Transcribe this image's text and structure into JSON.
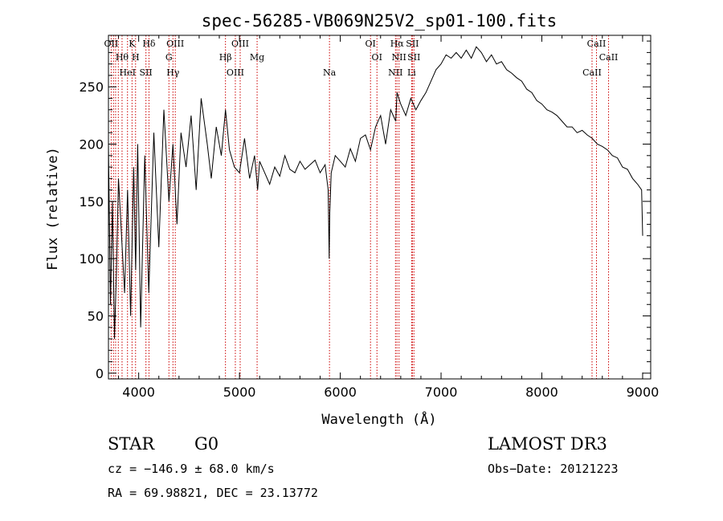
{
  "chart_data": {
    "type": "line",
    "title": "spec-56285-VB069N25V2_sp01-100.fits",
    "xlabel": "Wavelength (Å)",
    "ylabel": "Flux (relative)",
    "xlim": [
      3700,
      9080
    ],
    "ylim": [
      -5,
      295
    ],
    "xticks": [
      4000,
      5000,
      6000,
      7000,
      8000,
      9000
    ],
    "yticks": [
      0,
      50,
      100,
      150,
      200,
      250
    ],
    "grid": false,
    "series": [
      {
        "color": "#000000",
        "x": [
          3700,
          3720,
          3740,
          3760,
          3780,
          3800,
          3830,
          3860,
          3890,
          3920,
          3950,
          3970,
          3990,
          4020,
          4060,
          4100,
          4150,
          4200,
          4250,
          4300,
          4340,
          4380,
          4420,
          4470,
          4520,
          4570,
          4620,
          4680,
          4720,
          4770,
          4820,
          4861,
          4900,
          4950,
          5000,
          5050,
          5100,
          5150,
          5180,
          5200,
          5250,
          5300,
          5350,
          5400,
          5450,
          5500,
          5550,
          5600,
          5650,
          5700,
          5750,
          5800,
          5850,
          5880,
          5890,
          5896,
          5910,
          5950,
          6000,
          6050,
          6100,
          6150,
          6200,
          6250,
          6300,
          6350,
          6400,
          6450,
          6500,
          6550,
          6563,
          6600,
          6650,
          6700,
          6750,
          6800,
          6850,
          6900,
          6950,
          7000,
          7050,
          7100,
          7150,
          7200,
          7250,
          7300,
          7350,
          7400,
          7450,
          7500,
          7550,
          7600,
          7650,
          7700,
          7750,
          7800,
          7850,
          7900,
          7950,
          8000,
          8050,
          8100,
          8150,
          8200,
          8250,
          8300,
          8350,
          8400,
          8450,
          8500,
          8550,
          8600,
          8650,
          8700,
          8750,
          8800,
          8850,
          8900,
          8950,
          8990,
          9000
        ],
        "y": [
          200,
          60,
          150,
          30,
          90,
          170,
          120,
          70,
          160,
          50,
          180,
          90,
          200,
          40,
          190,
          70,
          210,
          110,
          230,
          150,
          200,
          130,
          210,
          180,
          225,
          160,
          240,
          200,
          170,
          215,
          190,
          230,
          195,
          180,
          175,
          205,
          170,
          190,
          160,
          185,
          175,
          165,
          180,
          172,
          190,
          178,
          175,
          185,
          178,
          182,
          186,
          175,
          182,
          160,
          100,
          140,
          175,
          190,
          185,
          180,
          196,
          185,
          205,
          208,
          195,
          215,
          225,
          200,
          230,
          220,
          245,
          235,
          225,
          240,
          230,
          238,
          245,
          255,
          265,
          270,
          278,
          275,
          280,
          275,
          282,
          275,
          285,
          280,
          272,
          278,
          270,
          272,
          265,
          262,
          258,
          255,
          248,
          245,
          238,
          235,
          230,
          228,
          225,
          220,
          215,
          215,
          210,
          212,
          208,
          205,
          200,
          198,
          195,
          190,
          188,
          180,
          178,
          170,
          165,
          160,
          120
        ]
      }
    ],
    "lines": [
      {
        "x": 3727,
        "top": "OII",
        "bottom": ""
      },
      {
        "x": 3750,
        "top": "",
        "bottom": ""
      },
      {
        "x": 3771,
        "top": "",
        "bottom": ""
      },
      {
        "x": 3798,
        "top": "",
        "bottom": ""
      },
      {
        "x": 3835,
        "top": "Hθ",
        "bottom": ""
      },
      {
        "x": 3889,
        "top": "HeI",
        "bottom": ""
      },
      {
        "x": 3934,
        "top": "K",
        "bottom": ""
      },
      {
        "x": 3969,
        "top": "H",
        "bottom": ""
      },
      {
        "x": 4072,
        "top": "SII",
        "bottom": ""
      },
      {
        "x": 4102,
        "top": "Hδ",
        "bottom": ""
      },
      {
        "x": 4300,
        "top": "G",
        "bottom": ""
      },
      {
        "x": 4340,
        "top": "Hγ",
        "bottom": ""
      },
      {
        "x": 4363,
        "top": "OIII",
        "bottom": ""
      },
      {
        "x": 4861,
        "top": "Hβ",
        "bottom": ""
      },
      {
        "x": 4959,
        "top": "OIII",
        "bottom": ""
      },
      {
        "x": 5007,
        "top": "OIII",
        "bottom": ""
      },
      {
        "x": 5175,
        "top": "Mg",
        "bottom": ""
      },
      {
        "x": 5893,
        "top": "Na",
        "bottom": ""
      },
      {
        "x": 6300,
        "top": "OI",
        "bottom": ""
      },
      {
        "x": 6364,
        "top": "OI",
        "bottom": ""
      },
      {
        "x": 6548,
        "top": "NII",
        "bottom": ""
      },
      {
        "x": 6563,
        "top": "Hα",
        "bottom": ""
      },
      {
        "x": 6583,
        "top": "NII",
        "bottom": ""
      },
      {
        "x": 6708,
        "top": "Li",
        "bottom": ""
      },
      {
        "x": 6716,
        "top": "SII",
        "bottom": ""
      },
      {
        "x": 6731,
        "top": "SII",
        "bottom": ""
      },
      {
        "x": 8498,
        "top": "CaII",
        "bottom": ""
      },
      {
        "x": 8542,
        "top": "CaII",
        "bottom": ""
      },
      {
        "x": 8662,
        "top": "CaII",
        "bottom": ""
      }
    ],
    "line_color": "#cc0000"
  },
  "info": {
    "object_class": "STAR",
    "subclass": "G0",
    "survey": "LAMOST DR3",
    "cz": "cz = −146.9 ± 68.0 km/s",
    "obs_date": "Obs−Date: 20121223",
    "radec": "RA =  69.98821, DEC =  23.13772"
  }
}
